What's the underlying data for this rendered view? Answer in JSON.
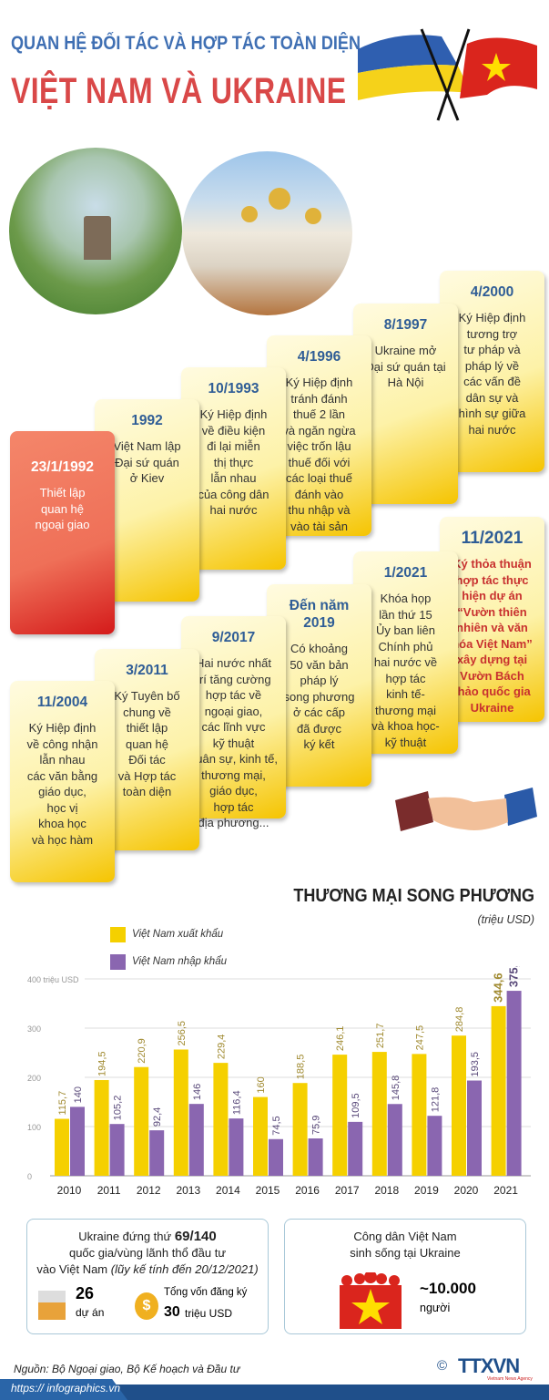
{
  "header": {
    "subtitle": "QUAN HỆ ĐỐI TÁC VÀ HỢP TÁC TOÀN DIỆN",
    "title": "VIỆT NAM VÀ UKRAINE"
  },
  "flags": {
    "left": "ukraine-flag",
    "right": "vietnam-flag",
    "ukraine_colors": [
      "#2f5fb0",
      "#f5d21a"
    ],
    "vietnam_colors": [
      "#da251d",
      "#ffde00"
    ]
  },
  "timeline": [
    {
      "date": "23/1/1992",
      "text": "Thiết lập\nquan hệ\nngoại giao"
    },
    {
      "date": "1992",
      "text": "Việt Nam lập\nĐại sứ quán\nở Kiev"
    },
    {
      "date": "10/1993",
      "text": "Ký Hiệp định\nvề điều kiện\nđi lại miễn\nthị thực\nlẫn nhau\ncủa công dân\nhai nước"
    },
    {
      "date": "4/1996",
      "text": "Ký Hiệp định\ntránh đánh\nthuế 2 lần\nvà ngăn ngừa\nviệc trốn lậu\nthuế đối với\ncác loại thuế\nđánh vào\nthu nhập và\nvào tài sản"
    },
    {
      "date": "8/1997",
      "text": "Ukraine mở\nĐại sứ quán tại\nHà Nội"
    },
    {
      "date": "4/2000",
      "text": "Ký Hiệp định\ntương trợ\ntư pháp và\npháp lý về\ncác vấn đề\ndân sự và\nhình sự giữa\nhai nước"
    },
    {
      "date": "11/2004",
      "text": "Ký Hiệp định\nvề công nhận\nlẫn nhau\ncác văn bằng\ngiáo dục,\nhọc vị\nkhoa học\nvà học hàm"
    },
    {
      "date": "3/2011",
      "text": "Ký Tuyên bố\nchung về\nthiết lập\nquan hệ\nĐối tác\nvà Hợp tác\ntoàn diện"
    },
    {
      "date": "9/2017",
      "text": "Hai nước nhất\ntrí tăng cường\nhợp tác về\nngoại giao,\ncác lĩnh vực\nkỹ thuật\nquân sự, kinh tế,\nthương mại,\ngiáo dục,\nhợp tác\nđịa phương..."
    },
    {
      "date": "Đến năm\n2019",
      "text": "Có khoảng\n50 văn bản\npháp lý\nsong phương\nở các cấp\nđã được\nký kết"
    },
    {
      "date": "1/2021",
      "text": "Khóa họp\nlần thứ 15\nỦy ban liên\nChính phủ\nhai nước về\nhợp tác\nkinh tế-\nthương mại\nvà khoa học-\nkỹ thuật"
    },
    {
      "date": "11/2021",
      "text": "Ký thỏa thuận\nhợp tác thực\nhiện dự án\n“Vườn thiên\nnhiên và văn\nhóa Việt Nam”\nxây dựng tại\nVườn Bách\nthảo quốc gia\nUkraine"
    }
  ],
  "chart_data": {
    "type": "bar",
    "title": "THƯƠNG MẠI SONG PHƯƠNG",
    "unit": "(triệu USD)",
    "categories": [
      "2010",
      "2011",
      "2012",
      "2013",
      "2014",
      "2015",
      "2016",
      "2017",
      "2018",
      "2019",
      "2020",
      "2021"
    ],
    "series": [
      {
        "name": "Việt Nam xuất khẩu",
        "color": "#f5d000",
        "values": [
          115.7,
          194.5,
          220.9,
          256.5,
          229.4,
          160,
          188.5,
          246.1,
          251.7,
          247.5,
          284.8,
          344.6
        ],
        "labels": [
          "115,7",
          "194,5",
          "220,9",
          "256,5",
          "229,4",
          "160",
          "188,5",
          "246,1",
          "251,7",
          "247,5",
          "284,8",
          "344,6"
        ]
      },
      {
        "name": "Việt Nam nhập khẩu",
        "color": "#8a66b0",
        "values": [
          140,
          105.2,
          92.4,
          146,
          116.4,
          74.5,
          75.9,
          109.5,
          145.8,
          121.8,
          193.5,
          375.8
        ],
        "labels": [
          "140",
          "105,2",
          "92,4",
          "146",
          "116,4",
          "74,5",
          "75,9",
          "109,5",
          "145,8",
          "121,8",
          "193,5",
          "375,8"
        ]
      }
    ],
    "yticks": [
      "0",
      "100",
      "200",
      "300",
      "400 triệu USD"
    ],
    "ylim": [
      0,
      400
    ],
    "grid": true,
    "legend": "top-left"
  },
  "investment": {
    "line1": "Ukraine đứng thứ ",
    "rank": "69/140",
    "line2": "quốc gia/vùng lãnh thổ đầu tư",
    "line3": "vào Việt Nam ",
    "note": "(lũy kế tính đến 20/12/2021)",
    "projects": "26",
    "projects_label": "dự án",
    "capital_label": "Tổng vốn đăng ký",
    "capital": "30",
    "capital_unit": "triệu USD"
  },
  "citizens": {
    "line1": "Công dân Việt Nam",
    "line2": "sinh sống tại Ukraine",
    "count": "~10.000",
    "unit": "người"
  },
  "source": "Nguồn: Bộ Ngoại giao, Bộ Kế hoạch và Đầu tư",
  "logo": {
    "text": "TTXVN",
    "sub": "Vietnam News Agency",
    "copyright": "©"
  },
  "url": "https:// infographics.vn"
}
